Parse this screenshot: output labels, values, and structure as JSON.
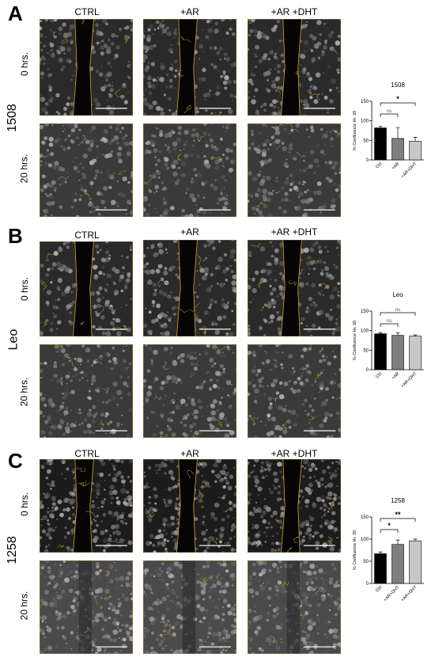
{
  "columns": [
    "CTRL",
    "+AR",
    "+AR +DHT"
  ],
  "rows": [
    "0 hrs.",
    "20 hrs."
  ],
  "panels": [
    {
      "letter": "A",
      "cell_line": "1508",
      "chart_data": {
        "type": "bar",
        "title": "1508",
        "ylabel": "% Confluence Hr. 20",
        "categories": [
          "Ctrl",
          "+AR",
          "+AR+DHT"
        ],
        "values": [
          82,
          55,
          48
        ],
        "errors": [
          4,
          28,
          10
        ],
        "bar_colors": [
          "#000000",
          "#7f7f7f",
          "#c8c8c8"
        ],
        "ylim": [
          0,
          150
        ],
        "yticks": [
          0,
          50,
          100,
          150
        ],
        "comparisons": [
          {
            "from": 0,
            "to": 1,
            "label": "ns"
          },
          {
            "from": 0,
            "to": 2,
            "label": "*"
          }
        ]
      }
    },
    {
      "letter": "B",
      "cell_line": "Leo",
      "chart_data": {
        "type": "bar",
        "title": "Leo",
        "ylabel": "% Confluence Hr. 20",
        "categories": [
          "Ctrl",
          "+AR",
          "+AR+DHT"
        ],
        "values": [
          92,
          88,
          86
        ],
        "errors": [
          3,
          6,
          3
        ],
        "bar_colors": [
          "#000000",
          "#7f7f7f",
          "#c8c8c8"
        ],
        "ylim": [
          0,
          150
        ],
        "yticks": [
          0,
          50,
          100,
          150
        ],
        "comparisons": [
          {
            "from": 0,
            "to": 1,
            "label": "ns"
          },
          {
            "from": 0,
            "to": 2,
            "label": "ns"
          }
        ]
      }
    },
    {
      "letter": "C",
      "cell_line": "1258",
      "chart_data": {
        "type": "bar",
        "title": "1258",
        "ylabel": "% Confluence Hr. 20",
        "categories": [
          "Ctrl",
          "+AR+DHT",
          "+AR+DHT"
        ],
        "values": [
          67,
          88,
          96
        ],
        "errors": [
          4,
          10,
          4
        ],
        "bar_colors": [
          "#000000",
          "#7f7f7f",
          "#c8c8c8"
        ],
        "ylim": [
          0,
          150
        ],
        "yticks": [
          0,
          50,
          100,
          150
        ],
        "comparisons": [
          {
            "from": 0,
            "to": 1,
            "label": "*"
          },
          {
            "from": 0,
            "to": 2,
            "label": "**"
          }
        ]
      }
    }
  ]
}
